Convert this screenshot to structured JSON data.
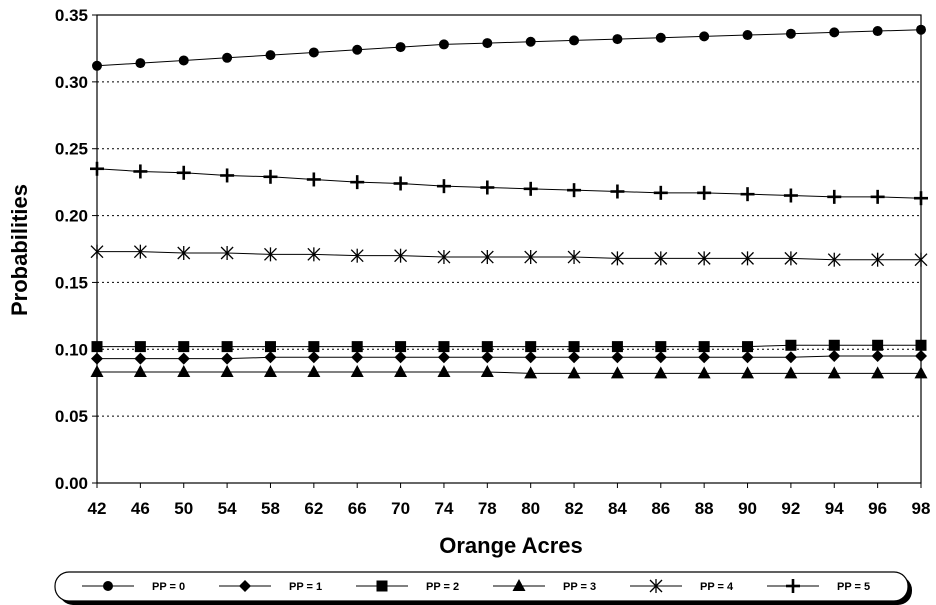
{
  "chart_data": {
    "type": "line",
    "title": "",
    "xlabel": "Orange Acres",
    "ylabel": "Probabilities",
    "categories": [
      "42",
      "46",
      "50",
      "54",
      "58",
      "62",
      "66",
      "70",
      "74",
      "78",
      "80",
      "82",
      "84",
      "86",
      "88",
      "90",
      "92",
      "94",
      "96",
      "98"
    ],
    "ylim": [
      0,
      0.35
    ],
    "yticks": [
      "0.00",
      "0.05",
      "0.10",
      "0.15",
      "0.20",
      "0.25",
      "0.30",
      "0.35"
    ],
    "grid": "horizontal dashed",
    "legend_position": "bottom",
    "series": [
      {
        "name": "PP = 0",
        "marker": "circle",
        "values": [
          0.312,
          0.314,
          0.316,
          0.318,
          0.32,
          0.322,
          0.324,
          0.326,
          0.328,
          0.329,
          0.33,
          0.331,
          0.332,
          0.333,
          0.334,
          0.335,
          0.336,
          0.337,
          0.338,
          0.339
        ]
      },
      {
        "name": "PP = 1",
        "marker": "diamond",
        "values": [
          0.093,
          0.093,
          0.093,
          0.093,
          0.094,
          0.094,
          0.094,
          0.094,
          0.094,
          0.094,
          0.094,
          0.094,
          0.094,
          0.094,
          0.094,
          0.094,
          0.094,
          0.095,
          0.095,
          0.095
        ]
      },
      {
        "name": "PP = 2",
        "marker": "square",
        "values": [
          0.102,
          0.102,
          0.102,
          0.102,
          0.102,
          0.102,
          0.102,
          0.102,
          0.102,
          0.102,
          0.102,
          0.102,
          0.102,
          0.102,
          0.102,
          0.102,
          0.103,
          0.103,
          0.103,
          0.103
        ]
      },
      {
        "name": "PP = 3",
        "marker": "triangle",
        "values": [
          0.083,
          0.083,
          0.083,
          0.083,
          0.083,
          0.083,
          0.083,
          0.083,
          0.083,
          0.083,
          0.082,
          0.082,
          0.082,
          0.082,
          0.082,
          0.082,
          0.082,
          0.082,
          0.082,
          0.082
        ]
      },
      {
        "name": "PP = 4",
        "marker": "star",
        "values": [
          0.173,
          0.173,
          0.172,
          0.172,
          0.171,
          0.171,
          0.17,
          0.17,
          0.169,
          0.169,
          0.169,
          0.169,
          0.168,
          0.168,
          0.168,
          0.168,
          0.168,
          0.167,
          0.167,
          0.167
        ]
      },
      {
        "name": "PP = 5",
        "marker": "plus",
        "values": [
          0.235,
          0.233,
          0.232,
          0.23,
          0.229,
          0.227,
          0.225,
          0.224,
          0.222,
          0.221,
          0.22,
          0.219,
          0.218,
          0.217,
          0.217,
          0.216,
          0.215,
          0.214,
          0.214,
          0.213
        ]
      }
    ]
  }
}
